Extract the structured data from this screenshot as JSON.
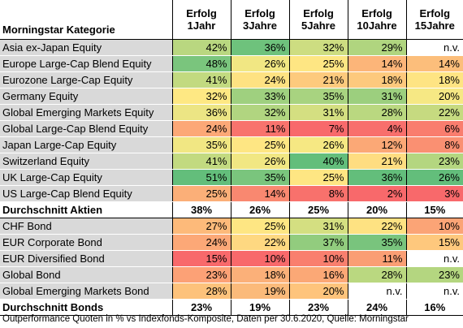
{
  "header": {
    "category": "Morningstar Kategorie",
    "columns": [
      {
        "line1": "Erfolg",
        "line2": "1Jahr"
      },
      {
        "line1": "Erfolg",
        "line2": "3Jahre"
      },
      {
        "line1": "Erfolg",
        "line2": "5Jahre"
      },
      {
        "line1": "Erfolg",
        "line2": "10Jahre"
      },
      {
        "line1": "Erfolg",
        "line2": "15Jahre"
      }
    ]
  },
  "colors": {
    "green_dark": "#63be7b",
    "green": "#8fcc7f",
    "yellow_green": "#c6da80",
    "yellow": "#fde983",
    "orange_light": "#fdc07c",
    "orange": "#fba776",
    "red_light": "#f98a6f",
    "red": "#f8696b",
    "white": "#ffffff"
  },
  "rows": [
    {
      "label": "Asia ex-Japan Equity",
      "type": "data",
      "cells": [
        {
          "v": "42%",
          "c": "#b9d780"
        },
        {
          "v": "36%",
          "c": "#6ec27c"
        },
        {
          "v": "32%",
          "c": "#cddd81"
        },
        {
          "v": "29%",
          "c": "#b0d57f"
        },
        {
          "v": "n.v.",
          "c": "#ffffff"
        }
      ]
    },
    {
      "label": "Europe Large-Cap Blend Equity",
      "type": "data",
      "cells": [
        {
          "v": "48%",
          "c": "#7ac57d"
        },
        {
          "v": "26%",
          "c": "#f1e783"
        },
        {
          "v": "25%",
          "c": "#fee683"
        },
        {
          "v": "14%",
          "c": "#fcb579"
        },
        {
          "v": "14%",
          "c": "#fcbe7b"
        }
      ]
    },
    {
      "label": "Eurozone Large-Cap Equity",
      "type": "data",
      "cells": [
        {
          "v": "41%",
          "c": "#c2da80"
        },
        {
          "v": "24%",
          "c": "#fee282"
        },
        {
          "v": "21%",
          "c": "#fdca7d"
        },
        {
          "v": "18%",
          "c": "#fdc97d"
        },
        {
          "v": "18%",
          "c": "#fee483"
        }
      ]
    },
    {
      "label": "Germany Equity",
      "type": "data",
      "cells": [
        {
          "v": "32%",
          "c": "#fee883"
        },
        {
          "v": "33%",
          "c": "#9fd07f"
        },
        {
          "v": "35%",
          "c": "#a8d380"
        },
        {
          "v": "31%",
          "c": "#9ccf7e"
        },
        {
          "v": "20%",
          "c": "#f6e884"
        }
      ]
    },
    {
      "label": "Global Emerging Markets Equity",
      "type": "data",
      "cells": [
        {
          "v": "36%",
          "c": "#ece584"
        },
        {
          "v": "32%",
          "c": "#b1d580"
        },
        {
          "v": "31%",
          "c": "#d4df81"
        },
        {
          "v": "28%",
          "c": "#bad880"
        },
        {
          "v": "22%",
          "c": "#c6da80"
        }
      ]
    },
    {
      "label": "Global Large-Cap Blend Equity",
      "type": "data",
      "cells": [
        {
          "v": "24%",
          "c": "#fca877"
        },
        {
          "v": "11%",
          "c": "#f8736d"
        },
        {
          "v": "7%",
          "c": "#f8696b"
        },
        {
          "v": "4%",
          "c": "#f86f6c"
        },
        {
          "v": "6%",
          "c": "#f97d6e"
        }
      ]
    },
    {
      "label": "Japan Large-Cap Equity",
      "type": "data",
      "cells": [
        {
          "v": "35%",
          "c": "#f1e783"
        },
        {
          "v": "25%",
          "c": "#fee683"
        },
        {
          "v": "26%",
          "c": "#f6e883"
        },
        {
          "v": "12%",
          "c": "#fba876"
        },
        {
          "v": "8%",
          "c": "#fa9072"
        }
      ]
    },
    {
      "label": "Switzerland Equity",
      "type": "data",
      "cells": [
        {
          "v": "41%",
          "c": "#c2da80"
        },
        {
          "v": "26%",
          "c": "#f1e783"
        },
        {
          "v": "40%",
          "c": "#63be7b"
        },
        {
          "v": "21%",
          "c": "#fedd81"
        },
        {
          "v": "23%",
          "c": "#b4d680"
        }
      ]
    },
    {
      "label": "UK Large-Cap Equity",
      "type": "data",
      "cells": [
        {
          "v": "51%",
          "c": "#63be7b"
        },
        {
          "v": "35%",
          "c": "#7ac57d"
        },
        {
          "v": "25%",
          "c": "#fee683"
        },
        {
          "v": "36%",
          "c": "#63be7b"
        },
        {
          "v": "26%",
          "c": "#63be7b"
        }
      ]
    },
    {
      "label": "US Large-Cap Blend Equity",
      "type": "data",
      "cells": [
        {
          "v": "25%",
          "c": "#fbaf78"
        },
        {
          "v": "14%",
          "c": "#f98870"
        },
        {
          "v": "8%",
          "c": "#f8716c"
        },
        {
          "v": "2%",
          "c": "#f8696b"
        },
        {
          "v": "3%",
          "c": "#f8696b"
        }
      ]
    },
    {
      "label": "Durchschnitt Aktien",
      "type": "avg",
      "cells": [
        {
          "v": "38%",
          "c": "#ffffff"
        },
        {
          "v": "26%",
          "c": "#ffffff"
        },
        {
          "v": "25%",
          "c": "#ffffff"
        },
        {
          "v": "20%",
          "c": "#ffffff"
        },
        {
          "v": "15%",
          "c": "#ffffff"
        }
      ]
    },
    {
      "label": "CHF Bond",
      "type": "data",
      "cells": [
        {
          "v": "27%",
          "c": "#fdba7a"
        },
        {
          "v": "25%",
          "c": "#fee683"
        },
        {
          "v": "31%",
          "c": "#d4df81"
        },
        {
          "v": "22%",
          "c": "#fee282"
        },
        {
          "v": "10%",
          "c": "#fba476"
        }
      ]
    },
    {
      "label": "EUR Corporate Bond",
      "type": "data",
      "cells": [
        {
          "v": "24%",
          "c": "#fca877"
        },
        {
          "v": "22%",
          "c": "#fed881"
        },
        {
          "v": "37%",
          "c": "#92cc7e"
        },
        {
          "v": "35%",
          "c": "#79c47d"
        },
        {
          "v": "15%",
          "c": "#fec87d"
        }
      ]
    },
    {
      "label": "EUR Diversified Bond",
      "type": "data",
      "cells": [
        {
          "v": "15%",
          "c": "#f8696b"
        },
        {
          "v": "10%",
          "c": "#f8696b"
        },
        {
          "v": "10%",
          "c": "#f97f6e"
        },
        {
          "v": "11%",
          "c": "#fa9e74"
        },
        {
          "v": "n.v.",
          "c": "#ffffff"
        }
      ]
    },
    {
      "label": "Global Bond",
      "type": "data",
      "cells": [
        {
          "v": "23%",
          "c": "#fca176"
        },
        {
          "v": "18%",
          "c": "#fbb079"
        },
        {
          "v": "16%",
          "c": "#fba876"
        },
        {
          "v": "28%",
          "c": "#bad880"
        },
        {
          "v": "23%",
          "c": "#b4d680"
        }
      ]
    },
    {
      "label": "Global Emerging Markets Bond",
      "type": "data",
      "cells": [
        {
          "v": "28%",
          "c": "#fdc27b"
        },
        {
          "v": "19%",
          "c": "#fbba7a"
        },
        {
          "v": "20%",
          "c": "#fec47c"
        },
        {
          "v": "n.v.",
          "c": "#ffffff"
        },
        {
          "v": "n.v.",
          "c": "#ffffff"
        }
      ]
    },
    {
      "label": "Durchschnitt Bonds",
      "type": "avg",
      "cells": [
        {
          "v": "23%",
          "c": "#ffffff"
        },
        {
          "v": "19%",
          "c": "#ffffff"
        },
        {
          "v": "23%",
          "c": "#ffffff"
        },
        {
          "v": "24%",
          "c": "#ffffff"
        },
        {
          "v": "16%",
          "c": "#ffffff"
        }
      ]
    }
  ],
  "footnote": "Outperformance Quoten in % vs Indexfonds-Komposite, Daten per 30.6.2020, Quelle: Morningstar"
}
